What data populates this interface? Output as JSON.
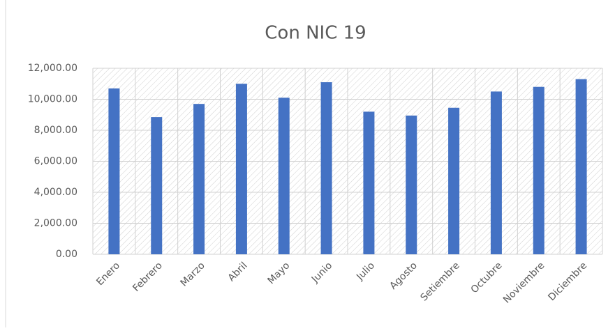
{
  "chart_data": {
    "type": "bar",
    "title": "Con NIC 19",
    "categories": [
      "Enero",
      "Febrero",
      "Marzo",
      "Abril",
      "Mayo",
      "Junio",
      "Julio",
      "Agosto",
      "Setiembre",
      "Octubre",
      "Noviembre",
      "Diciembre"
    ],
    "values": [
      10700,
      8850,
      9700,
      11000,
      10100,
      11100,
      9200,
      8950,
      9450,
      10500,
      10800,
      11300
    ],
    "color": "#4472c4",
    "ylim": [
      0,
      12000
    ],
    "yticks": [
      {
        "value": 0,
        "label": "0.00"
      },
      {
        "value": 2000,
        "label": "2,000.00"
      },
      {
        "value": 4000,
        "label": "4,000.00"
      },
      {
        "value": 6000,
        "label": "6,000.00"
      },
      {
        "value": 8000,
        "label": "8,000.00"
      },
      {
        "value": 10000,
        "label": "10,000.00"
      },
      {
        "value": 12000,
        "label": "12,000.00"
      }
    ],
    "grid": true
  }
}
